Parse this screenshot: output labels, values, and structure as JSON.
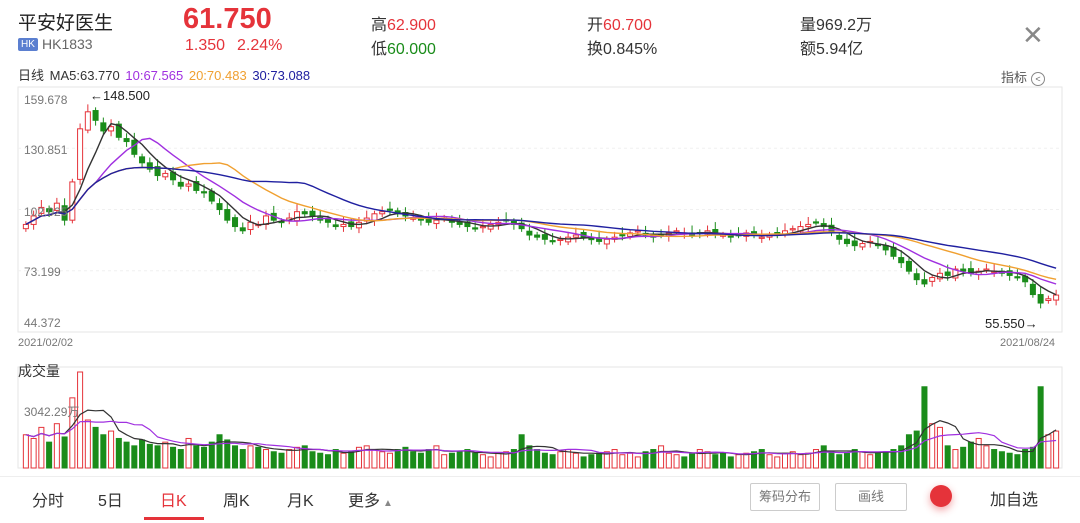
{
  "header": {
    "name": "平安好医生",
    "market_badge": "HK",
    "code": "HK1833",
    "price": "61.750",
    "change": "1.350",
    "change_pct": "2.24%",
    "high_label": "高",
    "high": "62.900",
    "low_label": "低",
    "low": "60.000",
    "open_label": "开",
    "open": "60.700",
    "turnover_label": "换",
    "turnover": "0.845%",
    "volume_label": "量",
    "volume": "969.2万",
    "amount_label": "额",
    "amount": "5.94亿",
    "close_icon": "close-icon"
  },
  "ma_bar": {
    "period": "日线",
    "ma5": "MA5:63.770",
    "ma10": "10:67.565",
    "ma20": "20:70.483",
    "ma30": "30:73.088",
    "indicator_label": "指标",
    "colors": {
      "ma5": "#333333",
      "ma10": "#a030e0",
      "ma20": "#f0a030",
      "ma30": "#2020a0"
    }
  },
  "chart_data": {
    "type": "candlestick",
    "y_ticks": [
      "159.678",
      "130.851",
      "102.025",
      "73.199",
      "44.372"
    ],
    "ylim": [
      44.372,
      159.678
    ],
    "x_start": "2021/02/02",
    "x_end": "2021/08/24",
    "max_marker": "←148.500",
    "min_marker": "55.550→",
    "up_color": "#e5333a",
    "down_color": "#1a8c1a",
    "close_series": [
      95,
      99,
      103,
      101,
      105,
      97,
      115,
      140,
      148,
      144,
      139,
      141,
      136,
      134,
      128,
      124,
      121,
      118,
      119,
      116,
      113,
      114,
      111,
      110,
      106,
      102,
      97,
      94,
      92,
      96,
      95,
      99,
      97,
      96,
      98,
      101,
      100,
      99,
      97,
      96,
      94,
      95,
      94,
      96,
      98,
      100,
      101,
      102,
      100,
      99,
      98,
      97,
      96,
      97,
      98,
      96,
      95,
      94,
      93,
      94,
      95,
      96,
      97,
      95,
      93,
      90,
      89,
      88,
      87,
      88,
      89,
      90,
      89,
      88,
      87,
      88,
      89,
      90,
      91,
      92,
      90,
      89,
      90,
      91,
      92,
      91,
      90,
      91,
      92,
      91,
      90,
      89,
      90,
      91,
      90,
      89,
      90,
      91,
      92,
      93,
      94,
      95,
      96,
      94,
      91,
      88,
      86,
      85,
      86,
      87,
      85,
      83,
      80,
      77,
      73,
      69,
      67,
      70,
      72,
      71,
      74,
      73,
      72,
      73,
      74,
      73,
      72,
      71,
      70,
      68,
      62,
      58,
      60,
      61.75
    ],
    "volume_label": "成交量",
    "volume_tick": "3042.29万",
    "volume_series": [
      45,
      40,
      55,
      35,
      60,
      42,
      95,
      130,
      65,
      55,
      45,
      50,
      40,
      35,
      30,
      38,
      32,
      30,
      35,
      28,
      25,
      40,
      30,
      28,
      35,
      45,
      38,
      30,
      25,
      30,
      28,
      25,
      22,
      20,
      25,
      28,
      30,
      22,
      20,
      18,
      25,
      20,
      22,
      28,
      30,
      25,
      22,
      20,
      25,
      28,
      22,
      20,
      25,
      30,
      18,
      20,
      22,
      25,
      20,
      18,
      15,
      20,
      22,
      25,
      45,
      30,
      25,
      20,
      18,
      22,
      25,
      20,
      15,
      18,
      20,
      22,
      25,
      18,
      20,
      15,
      22,
      25,
      30,
      20,
      18,
      15,
      20,
      25,
      22,
      18,
      20,
      15,
      18,
      20,
      22,
      25,
      18,
      15,
      20,
      22,
      18,
      20,
      25,
      30,
      22,
      18,
      20,
      25,
      22,
      18,
      20,
      22,
      25,
      30,
      45,
      50,
      110,
      60,
      55,
      30,
      25,
      28,
      35,
      40,
      30,
      25,
      22,
      20,
      18,
      25,
      28,
      110,
      45,
      50
    ]
  },
  "bottom_tabs": {
    "t1": "分时",
    "t2": "5日",
    "t3": "日K",
    "t4": "周K",
    "t5": "月K",
    "t6": "更多",
    "more_icon": "caret-up-icon",
    "chip_dist": "筹码分布",
    "draw_line": "画线",
    "add_watch": "加自选"
  }
}
